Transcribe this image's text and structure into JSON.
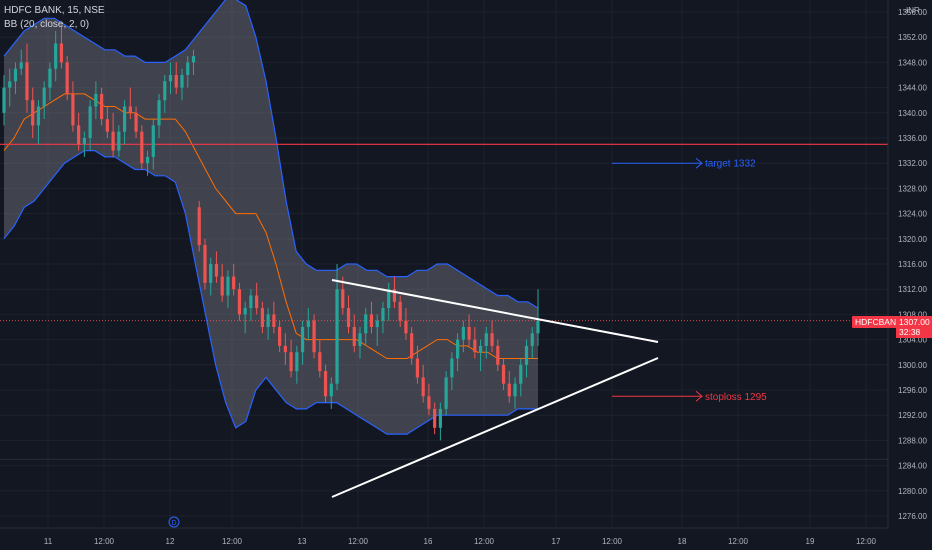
{
  "header": {
    "symbol_line": "HDFC BANK, 15, NSE",
    "indicator_line": "BB (20, close, 2, 0)"
  },
  "currency": "INR",
  "price_tag": {
    "symbol": "HDFCBANK",
    "price": "1307.00",
    "countdown": "32:38"
  },
  "chart_data": {
    "type": "candlestick",
    "y_ticks": [
      1276,
      1280,
      1284,
      1288,
      1292,
      1296,
      1300,
      1304,
      1308,
      1312,
      1316,
      1320,
      1324,
      1328,
      1332,
      1336,
      1340,
      1344,
      1348,
      1352,
      1356
    ],
    "y_tick_labels": [
      "1276.00",
      "1280.00",
      "1284.00",
      "1288.00",
      "1292.00",
      "1296.00",
      "1300.00",
      "1304.00",
      "1308.00",
      "1312.00",
      "1316.00",
      "1320.00",
      "1324.00",
      "1328.00",
      "1332.00",
      "1336.00",
      "1340.00",
      "1344.00",
      "1348.00",
      "1352.00",
      "1356.00"
    ],
    "ylim": [
      1273.3,
      1358.0
    ],
    "x_tick_labels": [
      "11",
      "12:00",
      "12",
      "12:00",
      "13",
      "12:00",
      "16",
      "12:00",
      "17",
      "12:00",
      "18",
      "12:00",
      "19",
      "12:00"
    ],
    "horizontal_lines": [
      1335,
      1307,
      1285
    ],
    "annotations": [
      {
        "label": "target 1332",
        "y": 1332,
        "color": "#2962ff"
      },
      {
        "label": "stoploss 1295",
        "y": 1295,
        "color": "#f23645"
      }
    ],
    "event_marker": "D",
    "colors": {
      "up": "#26a69a",
      "down": "#ef5350",
      "band": "#2962ff",
      "basis": "#ff6d00",
      "line": "#f23645"
    },
    "candles": [
      [
        1340,
        1346,
        1338,
        1344
      ],
      [
        1344,
        1347,
        1341,
        1345
      ],
      [
        1345,
        1348,
        1343,
        1347
      ],
      [
        1347,
        1350,
        1346,
        1348
      ],
      [
        1348,
        1351,
        1340,
        1342
      ],
      [
        1342,
        1344,
        1336,
        1338
      ],
      [
        1338,
        1342,
        1335,
        1341
      ],
      [
        1341,
        1345,
        1339,
        1344
      ],
      [
        1344,
        1348,
        1342,
        1347
      ],
      [
        1347,
        1353,
        1345,
        1351
      ],
      [
        1351,
        1354,
        1347,
        1348
      ],
      [
        1348,
        1349,
        1342,
        1343
      ],
      [
        1343,
        1345,
        1337,
        1338
      ],
      [
        1338,
        1340,
        1334,
        1335
      ],
      [
        1335,
        1337,
        1333,
        1336
      ],
      [
        1336,
        1342,
        1334,
        1341
      ],
      [
        1341,
        1345,
        1339,
        1343
      ],
      [
        1343,
        1344,
        1338,
        1339
      ],
      [
        1339,
        1341,
        1336,
        1337
      ],
      [
        1337,
        1340,
        1333,
        1334
      ],
      [
        1334,
        1338,
        1333,
        1337
      ],
      [
        1337,
        1342,
        1335,
        1341
      ],
      [
        1341,
        1344,
        1339,
        1340
      ],
      [
        1340,
        1341,
        1336,
        1337
      ],
      [
        1337,
        1338,
        1331,
        1332
      ],
      [
        1332,
        1334,
        1330,
        1333
      ],
      [
        1333,
        1339,
        1331,
        1338
      ],
      [
        1338,
        1343,
        1336,
        1342
      ],
      [
        1342,
        1346,
        1340,
        1345
      ],
      [
        1345,
        1348,
        1343,
        1346
      ],
      [
        1346,
        1348,
        1343,
        1344
      ],
      [
        1344,
        1347,
        1342,
        1346
      ],
      [
        1346,
        1349,
        1344,
        1348
      ],
      [
        1348,
        1350,
        1346,
        1349
      ],
      [
        1325,
        1326,
        1318,
        1319
      ],
      [
        1319,
        1320,
        1312,
        1313
      ],
      [
        1313,
        1317,
        1311,
        1316
      ],
      [
        1316,
        1318,
        1313,
        1314
      ],
      [
        1314,
        1316,
        1310,
        1311
      ],
      [
        1311,
        1315,
        1309,
        1314
      ],
      [
        1314,
        1316,
        1311,
        1312
      ],
      [
        1312,
        1313,
        1307,
        1308
      ],
      [
        1308,
        1310,
        1305,
        1309
      ],
      [
        1309,
        1312,
        1307,
        1311
      ],
      [
        1311,
        1313,
        1308,
        1309
      ],
      [
        1309,
        1310,
        1305,
        1306
      ],
      [
        1306,
        1309,
        1304,
        1308
      ],
      [
        1308,
        1310,
        1305,
        1306
      ],
      [
        1306,
        1307,
        1302,
        1303
      ],
      [
        1303,
        1305,
        1300,
        1302
      ],
      [
        1302,
        1304,
        1298,
        1299
      ],
      [
        1299,
        1303,
        1297,
        1302
      ],
      [
        1302,
        1307,
        1300,
        1306
      ],
      [
        1306,
        1309,
        1304,
        1307
      ],
      [
        1307,
        1308,
        1301,
        1302
      ],
      [
        1302,
        1304,
        1298,
        1299
      ],
      [
        1299,
        1300,
        1294,
        1295
      ],
      [
        1295,
        1298,
        1293,
        1297
      ],
      [
        1297,
        1316,
        1296,
        1312
      ],
      [
        1312,
        1314,
        1308,
        1309
      ],
      [
        1309,
        1311,
        1305,
        1306
      ],
      [
        1306,
        1308,
        1302,
        1303
      ],
      [
        1303,
        1306,
        1301,
        1305
      ],
      [
        1305,
        1309,
        1303,
        1308
      ],
      [
        1308,
        1310,
        1305,
        1306
      ],
      [
        1306,
        1308,
        1303,
        1307
      ],
      [
        1307,
        1310,
        1305,
        1309
      ],
      [
        1309,
        1313,
        1307,
        1312
      ],
      [
        1312,
        1314,
        1309,
        1310
      ],
      [
        1310,
        1311,
        1306,
        1307
      ],
      [
        1307,
        1309,
        1304,
        1305
      ],
      [
        1305,
        1306,
        1300,
        1301
      ],
      [
        1301,
        1303,
        1297,
        1298
      ],
      [
        1298,
        1300,
        1294,
        1295
      ],
      [
        1295,
        1297,
        1292,
        1293
      ],
      [
        1293,
        1294,
        1289,
        1290
      ],
      [
        1290,
        1294,
        1288,
        1293
      ],
      [
        1293,
        1299,
        1292,
        1298
      ],
      [
        1298,
        1302,
        1296,
        1301
      ],
      [
        1301,
        1305,
        1299,
        1304
      ],
      [
        1304,
        1307,
        1302,
        1306
      ],
      [
        1306,
        1308,
        1303,
        1304
      ],
      [
        1304,
        1306,
        1301,
        1302
      ],
      [
        1302,
        1304,
        1299,
        1303
      ],
      [
        1303,
        1306,
        1301,
        1305
      ],
      [
        1305,
        1307,
        1302,
        1303
      ],
      [
        1303,
        1304,
        1299,
        1300
      ],
      [
        1300,
        1301,
        1296,
        1297
      ],
      [
        1297,
        1299,
        1294,
        1295
      ],
      [
        1295,
        1298,
        1293,
        1297
      ],
      [
        1297,
        1301,
        1295,
        1300
      ],
      [
        1300,
        1304,
        1298,
        1303
      ],
      [
        1303,
        1306,
        1301,
        1305
      ],
      [
        1305,
        1312,
        1303,
        1307
      ]
    ],
    "bb_upper": [
      1349,
      1351,
      1353,
      1354,
      1355,
      1355,
      1354,
      1353,
      1352,
      1351,
      1350,
      1350,
      1349,
      1349,
      1348,
      1348,
      1348,
      1349,
      1350,
      1352,
      1354,
      1356,
      1358,
      1358,
      1357,
      1352,
      1345,
      1336,
      1326,
      1318,
      1316,
      1315,
      1315,
      1315,
      1316,
      1316,
      1315,
      1315,
      1314,
      1314,
      1314,
      1315,
      1315,
      1316,
      1316,
      1315,
      1314,
      1313,
      1312,
      1311,
      1311,
      1310,
      1310,
      1309
    ],
    "bb_lower": [
      1320,
      1322,
      1325,
      1326,
      1328,
      1330,
      1332,
      1333,
      1334,
      1334,
      1333,
      1333,
      1332,
      1331,
      1331,
      1330,
      1330,
      1329,
      1324,
      1316,
      1308,
      1300,
      1294,
      1290,
      1291,
      1296,
      1298,
      1296,
      1294,
      1293,
      1293,
      1294,
      1294,
      1294,
      1293,
      1292,
      1291,
      1290,
      1289,
      1289,
      1289,
      1290,
      1291,
      1292,
      1292,
      1292,
      1292,
      1292,
      1292,
      1292,
      1292,
      1293,
      1293,
      1293
    ],
    "bb_basis": [
      1334,
      1336,
      1339,
      1340,
      1341,
      1342,
      1343,
      1343,
      1343,
      1342,
      1341,
      1341,
      1340,
      1340,
      1339,
      1339,
      1339,
      1339,
      1337,
      1334,
      1331,
      1328,
      1326,
      1324,
      1324,
      1324,
      1321,
      1316,
      1310,
      1305,
      1304,
      1304,
      1304,
      1304,
      1304,
      1304,
      1303,
      1302,
      1301,
      1301,
      1301,
      1302,
      1303,
      1304,
      1304,
      1303,
      1303,
      1302,
      1302,
      1301,
      1301,
      1301,
      1301,
      1301
    ]
  }
}
